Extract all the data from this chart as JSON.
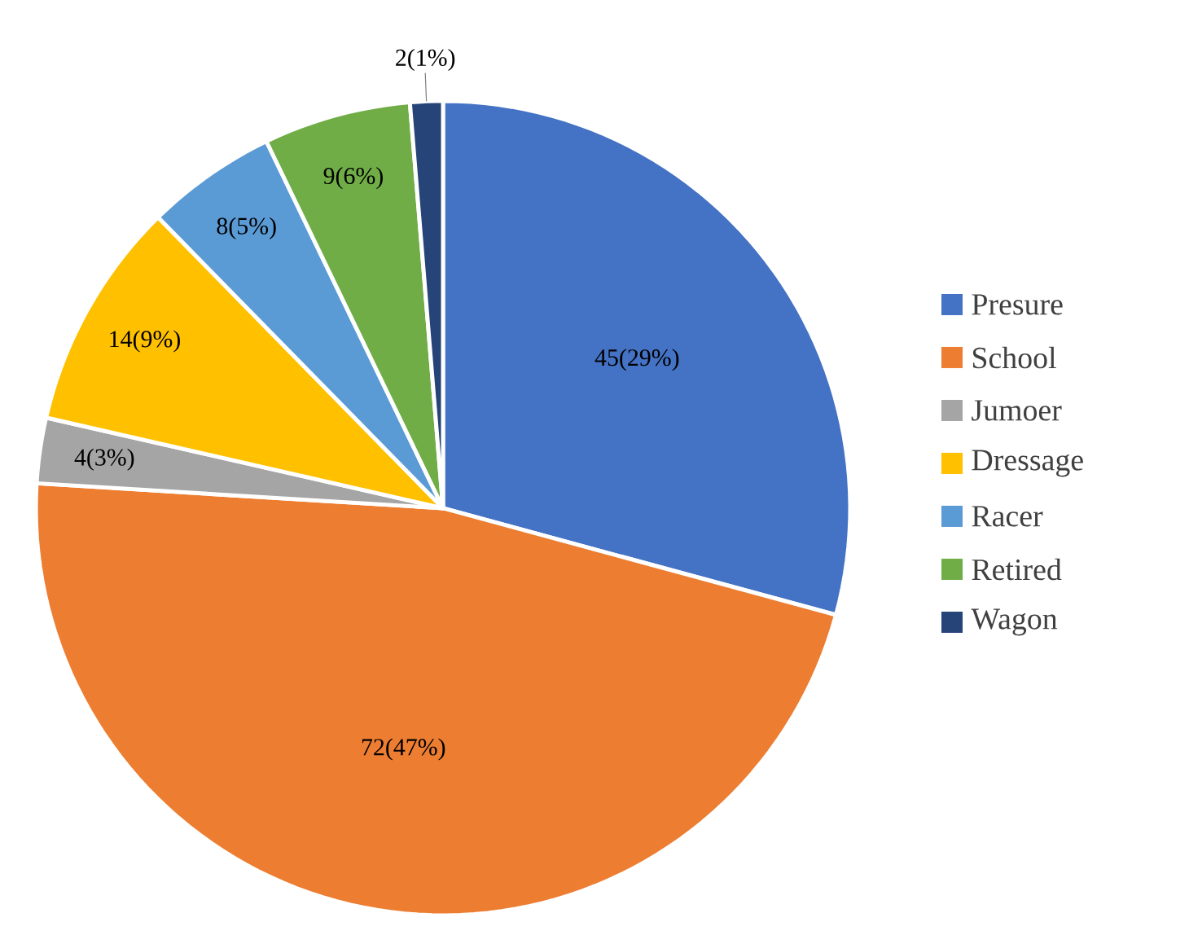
{
  "chart_data": {
    "type": "pie",
    "categories": [
      "Presure",
      "School",
      "Jumoer",
      "Dressage",
      "Racer",
      "Retired",
      "Wagon"
    ],
    "values": [
      45,
      72,
      4,
      14,
      8,
      9,
      2
    ],
    "value_labels": [
      "45(29%)",
      "72(47%)",
      "4(3%)",
      "14(9%)",
      "8(5%)",
      "9(6%)",
      "2(1%)"
    ],
    "colors": [
      "#4472c4",
      "#ed7d31",
      "#a5a5a5",
      "#ffc000",
      "#5b9bd5",
      "#70ad47",
      "#264478"
    ],
    "legend": "right"
  }
}
